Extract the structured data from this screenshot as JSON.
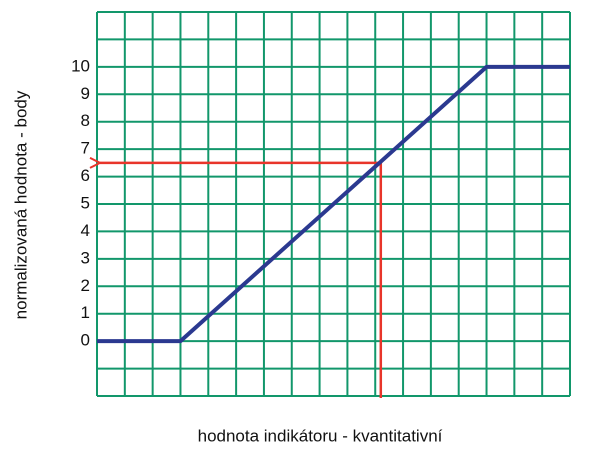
{
  "chart_data": {
    "type": "line",
    "xlabel": "hodnota indikátoru - kvantitativní",
    "ylabel": "normalizovaná hodnota - body",
    "x": [
      0,
      3,
      14,
      17
    ],
    "series": [
      {
        "color": "#2b3990",
        "values": [
          0,
          0,
          10,
          10
        ]
      }
    ],
    "xlim": [
      0,
      17
    ],
    "ylim": [
      -2,
      12
    ],
    "yticks": [
      0,
      1,
      2,
      3,
      4,
      5,
      6,
      7,
      8,
      9,
      10
    ],
    "grid": true,
    "grid_step": 1,
    "grid_color": "#12976b",
    "reference": {
      "x": 10.2,
      "y": 6.5,
      "color": "#e8352a"
    }
  }
}
